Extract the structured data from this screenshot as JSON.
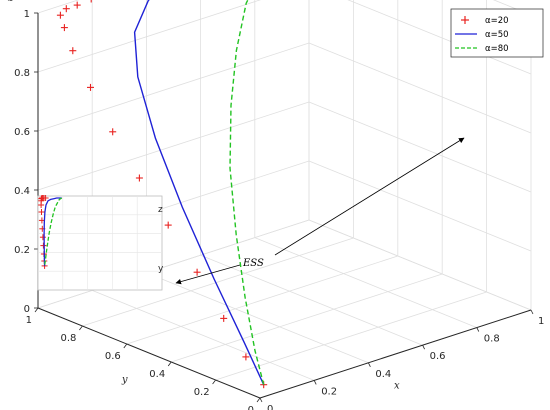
{
  "chart_data": {
    "type": "line",
    "title": "",
    "projection": "3d",
    "axes": {
      "x": {
        "label": "x",
        "range": [
          0,
          1
        ],
        "ticks": [
          "0",
          "0.2",
          "0.4",
          "0.6",
          "0.8",
          "1"
        ]
      },
      "y": {
        "label": "y",
        "range": [
          0,
          1
        ],
        "ticks": [
          "0",
          "0.2",
          "0.4",
          "0.6",
          "0.8",
          "1"
        ]
      },
      "z": {
        "label": "z",
        "range": [
          0,
          1
        ],
        "ticks": [
          "0",
          "0.2",
          "0.4",
          "0.6",
          "0.8",
          "1"
        ]
      }
    },
    "grid": true,
    "legend": "top-right",
    "series": [
      {
        "name": "α=20",
        "style": "red plus markers",
        "color": "#e8211f",
        "points": [
          {
            "t": 0.0,
            "x": 0.03,
            "y": 0.02,
            "z": 0.03
          },
          {
            "t": 0.06,
            "x": 0.03,
            "y": 0.1,
            "z": 0.1
          },
          {
            "t": 0.12,
            "x": 0.03,
            "y": 0.2,
            "z": 0.2
          },
          {
            "t": 0.18,
            "x": 0.03,
            "y": 0.32,
            "z": 0.32
          },
          {
            "t": 0.24,
            "x": 0.03,
            "y": 0.45,
            "z": 0.44
          },
          {
            "t": 0.3,
            "x": 0.03,
            "y": 0.58,
            "z": 0.56
          },
          {
            "t": 0.36,
            "x": 0.03,
            "y": 0.7,
            "z": 0.68
          },
          {
            "t": 0.42,
            "x": 0.03,
            "y": 0.8,
            "z": 0.8
          },
          {
            "t": 0.48,
            "x": 0.03,
            "y": 0.88,
            "z": 0.9
          },
          {
            "t": 0.54,
            "x": 0.04,
            "y": 0.93,
            "z": 0.96
          },
          {
            "t": 0.6,
            "x": 0.05,
            "y": 0.96,
            "z": 0.99
          },
          {
            "t": 0.66,
            "x": 0.08,
            "y": 0.97,
            "z": 1.0
          },
          {
            "t": 0.72,
            "x": 0.12,
            "y": 0.97,
            "z": 1.0
          },
          {
            "t": 0.78,
            "x": 0.18,
            "y": 0.98,
            "z": 1.0
          },
          {
            "t": 0.84,
            "x": 0.25,
            "y": 0.98,
            "z": 1.0
          },
          {
            "t": 0.88,
            "x": 0.35,
            "y": 0.98,
            "z": 1.0
          },
          {
            "t": 0.91,
            "x": 0.46,
            "y": 0.99,
            "z": 1.0
          },
          {
            "t": 0.94,
            "x": 0.58,
            "y": 0.99,
            "z": 1.0
          },
          {
            "t": 0.96,
            "x": 0.7,
            "y": 0.99,
            "z": 1.0
          },
          {
            "t": 0.98,
            "x": 0.82,
            "y": 1.0,
            "z": 1.0
          },
          {
            "t": 0.99,
            "x": 0.92,
            "y": 1.0,
            "z": 1.0
          },
          {
            "t": 1.0,
            "x": 0.99,
            "y": 1.0,
            "z": 1.0
          }
        ]
      },
      {
        "name": "α=50",
        "style": "solid blue line",
        "color": "#1f22d6",
        "points": [
          {
            "x": 0.03,
            "y": 0.02,
            "z": 0.03
          },
          {
            "x": 0.04,
            "y": 0.12,
            "z": 0.14
          },
          {
            "x": 0.06,
            "y": 0.28,
            "z": 0.3
          },
          {
            "x": 0.09,
            "y": 0.46,
            "z": 0.48
          },
          {
            "x": 0.13,
            "y": 0.63,
            "z": 0.65
          },
          {
            "x": 0.18,
            "y": 0.77,
            "z": 0.8
          },
          {
            "x": 0.25,
            "y": 0.87,
            "z": 0.9
          },
          {
            "x": 0.35,
            "y": 0.93,
            "z": 0.96
          },
          {
            "x": 0.48,
            "y": 0.97,
            "z": 0.98
          },
          {
            "x": 0.62,
            "y": 0.99,
            "z": 0.99
          },
          {
            "x": 0.76,
            "y": 1.0,
            "z": 1.0
          },
          {
            "x": 0.9,
            "y": 1.0,
            "z": 1.0
          },
          {
            "x": 0.99,
            "y": 1.0,
            "z": 1.0
          }
        ]
      },
      {
        "name": "α=80",
        "style": "dashed green line",
        "color": "#22c322",
        "points": [
          {
            "x": 0.03,
            "y": 0.02,
            "z": 0.03
          },
          {
            "x": 0.08,
            "y": 0.12,
            "z": 0.1
          },
          {
            "x": 0.15,
            "y": 0.25,
            "z": 0.22
          },
          {
            "x": 0.24,
            "y": 0.4,
            "z": 0.36
          },
          {
            "x": 0.34,
            "y": 0.55,
            "z": 0.51
          },
          {
            "x": 0.45,
            "y": 0.68,
            "z": 0.65
          },
          {
            "x": 0.56,
            "y": 0.79,
            "z": 0.77
          },
          {
            "x": 0.67,
            "y": 0.88,
            "z": 0.87
          },
          {
            "x": 0.78,
            "y": 0.94,
            "z": 0.93
          },
          {
            "x": 0.88,
            "y": 0.98,
            "z": 0.98
          },
          {
            "x": 0.99,
            "y": 1.0,
            "z": 1.0
          }
        ]
      }
    ],
    "annotations": [
      {
        "text": "ESS",
        "points_to": "left-inset-and-upper-right"
      }
    ],
    "inset": {
      "position": "left",
      "labels": [
        "z",
        "y"
      ]
    }
  }
}
